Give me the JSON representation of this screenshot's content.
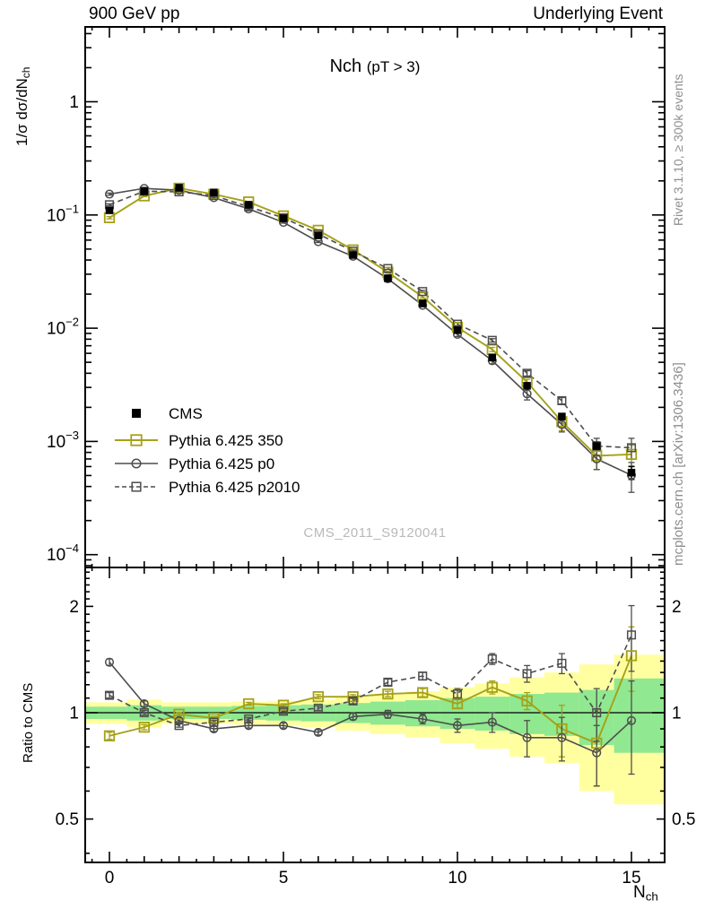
{
  "header": {
    "left": "900 GeV pp",
    "right": "Underlying Event"
  },
  "title": {
    "main": "Nch",
    "cut": "(pT >  3)"
  },
  "watermark": "CMS_2011_S9120041",
  "side_notes": {
    "top": "Rivet 3.1.10, ≥ 300k events",
    "bottom": "mcplots.cern.ch [arXiv:1306.3436]"
  },
  "axes": {
    "main_ylabel": "1/σ dσ/dN",
    "main_ylabel_sub": "ch",
    "ratio_ylabel": "Ratio to CMS",
    "xlabel": "N",
    "xlabel_sub": "ch",
    "x_ticks": [
      {
        "v": 0,
        "label": "0"
      },
      {
        "v": 5,
        "label": "5"
      },
      {
        "v": 10,
        "label": "10"
      },
      {
        "v": 15,
        "label": "15"
      }
    ],
    "main_y_ticks": [
      {
        "v": 1,
        "base": "1",
        "exp": ""
      },
      {
        "v": 0.1,
        "base": "10",
        "exp": "−1"
      },
      {
        "v": 0.01,
        "base": "10",
        "exp": "−2"
      },
      {
        "v": 0.001,
        "base": "10",
        "exp": "−3"
      },
      {
        "v": 0.0001,
        "base": "10",
        "exp": "−4"
      }
    ],
    "ratio_y_ticks": [
      {
        "v": 2,
        "label": "2"
      },
      {
        "v": 1,
        "label": "1"
      },
      {
        "v": 0.5,
        "label": "0.5"
      }
    ]
  },
  "chart_data": {
    "type": "line",
    "xlabel": "N_ch",
    "main_ylabel": "1/sigma dsigma/dN_ch",
    "ratio_ylabel": "Ratio to CMS",
    "x": [
      0,
      1,
      2,
      3,
      4,
      5,
      6,
      7,
      8,
      9,
      10,
      11,
      12,
      13,
      14,
      15
    ],
    "xlim": [
      -0.696,
      15.95
    ],
    "ylim_main": [
      7.6e-05,
      4.5
    ],
    "ylim_ratio": [
      0.376,
      2.58
    ],
    "cms": {
      "name": "CMS",
      "color": "#000000",
      "values": [
        0.11,
        0.162,
        0.174,
        0.158,
        0.123,
        0.0935,
        0.066,
        0.0443,
        0.0276,
        0.0166,
        0.0096,
        0.0055,
        0.0031,
        0.00166,
        0.00091,
        0.00053
      ],
      "rel_err": [
        0.01,
        0.008,
        0.008,
        0.008,
        0.008,
        0.01,
        0.01,
        0.012,
        0.015,
        0.02,
        0.025,
        0.03,
        0.04,
        0.06,
        0.09,
        0.13
      ]
    },
    "series": [
      {
        "name": "Pythia 6.425 350",
        "color": "#a5a118",
        "style": "solid",
        "marker": "square-open",
        "ratio": [
          0.86,
          0.91,
          0.99,
          0.965,
          1.06,
          1.05,
          1.11,
          1.11,
          1.13,
          1.14,
          1.06,
          1.18,
          1.08,
          0.9,
          0.82,
          1.45
        ],
        "ratio_err": [
          0.02,
          0.015,
          0.01,
          0.01,
          0.01,
          0.01,
          0.015,
          0.015,
          0.02,
          0.03,
          0.03,
          0.05,
          0.06,
          0.15,
          0.2,
          0.3
        ]
      },
      {
        "name": "Pythia 6.425 p0",
        "color": "#4d4d4d",
        "style": "solid",
        "marker": "circle-open",
        "ratio": [
          1.39,
          1.06,
          0.95,
          0.9,
          0.92,
          0.92,
          0.88,
          0.975,
          0.99,
          0.96,
          0.92,
          0.94,
          0.85,
          0.85,
          0.77,
          0.95
        ],
        "ratio_err": [
          0.03,
          0.02,
          0.015,
          0.015,
          0.015,
          0.015,
          0.015,
          0.02,
          0.025,
          0.03,
          0.04,
          0.06,
          0.1,
          0.12,
          0.15,
          0.28
        ]
      },
      {
        "name": "Pythia 6.425 p2010",
        "color": "#4d4d4d",
        "style": "dashed",
        "marker": "square-open",
        "ratio": [
          1.12,
          1.0,
          0.92,
          0.94,
          0.96,
          1.01,
          1.03,
          1.08,
          1.22,
          1.27,
          1.13,
          1.42,
          1.29,
          1.38,
          1.0,
          1.66
        ],
        "ratio_err": [
          0.02,
          0.015,
          0.01,
          0.01,
          0.01,
          0.015,
          0.015,
          0.02,
          0.025,
          0.03,
          0.04,
          0.05,
          0.07,
          0.09,
          0.17,
          0.35
        ]
      }
    ],
    "bands": {
      "green": {
        "color": "#90e890",
        "lo": [
          0.96,
          0.95,
          0.96,
          0.96,
          0.955,
          0.95,
          0.945,
          0.935,
          0.925,
          0.915,
          0.9,
          0.89,
          0.87,
          0.86,
          0.81,
          0.77
        ],
        "hi": [
          1.04,
          1.05,
          1.04,
          1.04,
          1.045,
          1.05,
          1.055,
          1.065,
          1.075,
          1.085,
          1.1,
          1.11,
          1.13,
          1.14,
          1.16,
          1.25
        ]
      },
      "yellow": {
        "color": "#ffffa0",
        "lo": [
          0.93,
          0.91,
          0.93,
          0.93,
          0.925,
          0.92,
          0.91,
          0.89,
          0.87,
          0.85,
          0.82,
          0.79,
          0.75,
          0.72,
          0.6,
          0.55
        ],
        "hi": [
          1.07,
          1.09,
          1.07,
          1.07,
          1.075,
          1.08,
          1.09,
          1.11,
          1.13,
          1.15,
          1.18,
          1.21,
          1.26,
          1.3,
          1.37,
          1.46
        ]
      }
    }
  }
}
